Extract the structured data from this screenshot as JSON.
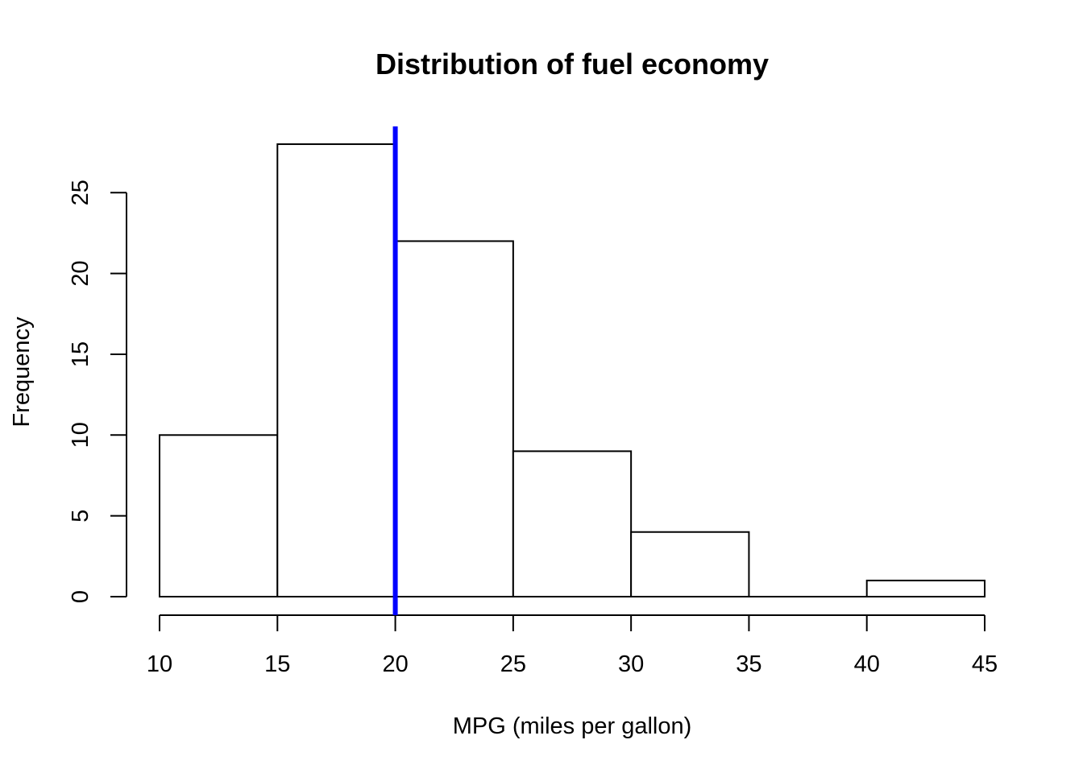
{
  "chart_data": {
    "type": "bar",
    "title": "Distribution of fuel economy",
    "xlabel": "MPG (miles per gallon)",
    "ylabel": "Frequency",
    "bins": [
      {
        "from": 10,
        "to": 15,
        "count": 10
      },
      {
        "from": 15,
        "to": 20,
        "count": 28
      },
      {
        "from": 20,
        "to": 25,
        "count": 22
      },
      {
        "from": 25,
        "to": 30,
        "count": 9
      },
      {
        "from": 30,
        "to": 35,
        "count": 4
      },
      {
        "from": 35,
        "to": 40,
        "count": 0
      },
      {
        "from": 40,
        "to": 45,
        "count": 1
      }
    ],
    "x_ticks": [
      "10",
      "15",
      "20",
      "25",
      "30",
      "35",
      "40",
      "45"
    ],
    "y_ticks": [
      "0",
      "5",
      "10",
      "15",
      "20",
      "25"
    ],
    "xlim": [
      10,
      45
    ],
    "ylim": [
      0,
      29
    ],
    "grid": false,
    "reference_line": {
      "x": 20,
      "color": "#0000ff"
    },
    "bar_fill": "#ffffff",
    "bar_stroke": "#000000"
  }
}
